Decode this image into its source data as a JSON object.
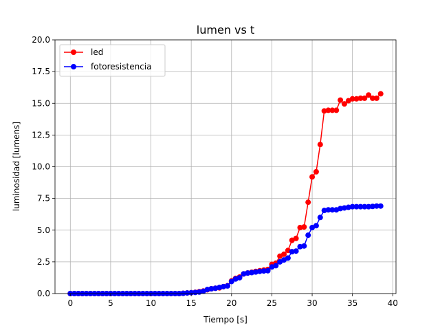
{
  "chart_data": {
    "type": "line",
    "title": "lumen vs t",
    "xlabel": "Tiempo [s]",
    "ylabel": "luminosidad [lumens]",
    "xlim": [
      -1.9,
      40.4
    ],
    "ylim": [
      0,
      20
    ],
    "xticks": [
      0,
      5,
      10,
      15,
      20,
      25,
      30,
      35,
      40
    ],
    "yticks": [
      0.0,
      2.5,
      5.0,
      7.5,
      10.0,
      12.5,
      15.0,
      17.5,
      20.0
    ],
    "xtick_labels": [
      "0",
      "5",
      "10",
      "15",
      "20",
      "25",
      "30",
      "35",
      "40"
    ],
    "ytick_labels": [
      "0.0",
      "2.5",
      "5.0",
      "7.5",
      "10.0",
      "12.5",
      "15.0",
      "17.5",
      "20.0"
    ],
    "grid": true,
    "legend_position": "top-left",
    "x": [
      0.0,
      0.5,
      1.0,
      1.5,
      2.0,
      2.5,
      3.0,
      3.5,
      4.0,
      4.5,
      5.0,
      5.5,
      6.0,
      6.5,
      7.0,
      7.5,
      8.0,
      8.5,
      9.0,
      9.5,
      10.0,
      10.5,
      11.0,
      11.5,
      12.0,
      12.5,
      13.0,
      13.5,
      14.0,
      14.5,
      15.0,
      15.5,
      16.0,
      16.5,
      17.0,
      17.5,
      18.0,
      18.5,
      19.0,
      19.5,
      20.0,
      20.5,
      21.0,
      21.5,
      22.0,
      22.5,
      23.0,
      23.5,
      24.0,
      24.5,
      25.0,
      25.5,
      26.0,
      26.5,
      27.0,
      27.5,
      28.0,
      28.5,
      29.0,
      29.5,
      30.0,
      30.5,
      31.0,
      31.5,
      32.0,
      32.5,
      33.0,
      33.5,
      34.0,
      34.5,
      35.0,
      35.5,
      36.0,
      36.5,
      37.0,
      37.5,
      38.0,
      38.5
    ],
    "series": [
      {
        "name": "led",
        "color": "#ff0000",
        "values": [
          0,
          0,
          0,
          0,
          0,
          0,
          0,
          0,
          0,
          0,
          0,
          0,
          0,
          0,
          0,
          0,
          0,
          0,
          0,
          0,
          0,
          0,
          0,
          0,
          0,
          0,
          0,
          0,
          0.02,
          0.05,
          0.07,
          0.1,
          0.15,
          0.2,
          0.3,
          0.38,
          0.42,
          0.45,
          0.55,
          0.62,
          1.0,
          1.2,
          1.3,
          1.55,
          1.62,
          1.68,
          1.75,
          1.8,
          1.85,
          1.9,
          2.3,
          2.4,
          2.95,
          3.1,
          3.4,
          4.2,
          4.35,
          5.2,
          5.25,
          7.2,
          9.2,
          9.6,
          11.75,
          14.4,
          14.45,
          14.45,
          14.45,
          15.25,
          14.95,
          15.2,
          15.35,
          15.35,
          15.4,
          15.4,
          15.65,
          15.4,
          15.4,
          15.75
        ]
      },
      {
        "name": "fotoresistencia",
        "color": "#0000ff",
        "values": [
          0,
          0,
          0,
          0,
          0,
          0,
          0,
          0,
          0,
          0,
          0,
          0,
          0,
          0,
          0,
          0,
          0,
          0,
          0,
          0,
          0,
          0,
          0,
          0,
          0,
          0,
          0,
          0,
          0.02,
          0.05,
          0.07,
          0.09,
          0.12,
          0.18,
          0.32,
          0.38,
          0.42,
          0.48,
          0.55,
          0.6,
          0.95,
          1.15,
          1.25,
          1.55,
          1.62,
          1.65,
          1.7,
          1.75,
          1.78,
          1.8,
          2.1,
          2.2,
          2.5,
          2.65,
          2.8,
          3.3,
          3.35,
          3.7,
          3.75,
          4.6,
          5.2,
          5.35,
          6.0,
          6.55,
          6.6,
          6.6,
          6.6,
          6.7,
          6.75,
          6.8,
          6.85,
          6.85,
          6.85,
          6.85,
          6.85,
          6.87,
          6.9,
          6.9
        ]
      }
    ]
  }
}
